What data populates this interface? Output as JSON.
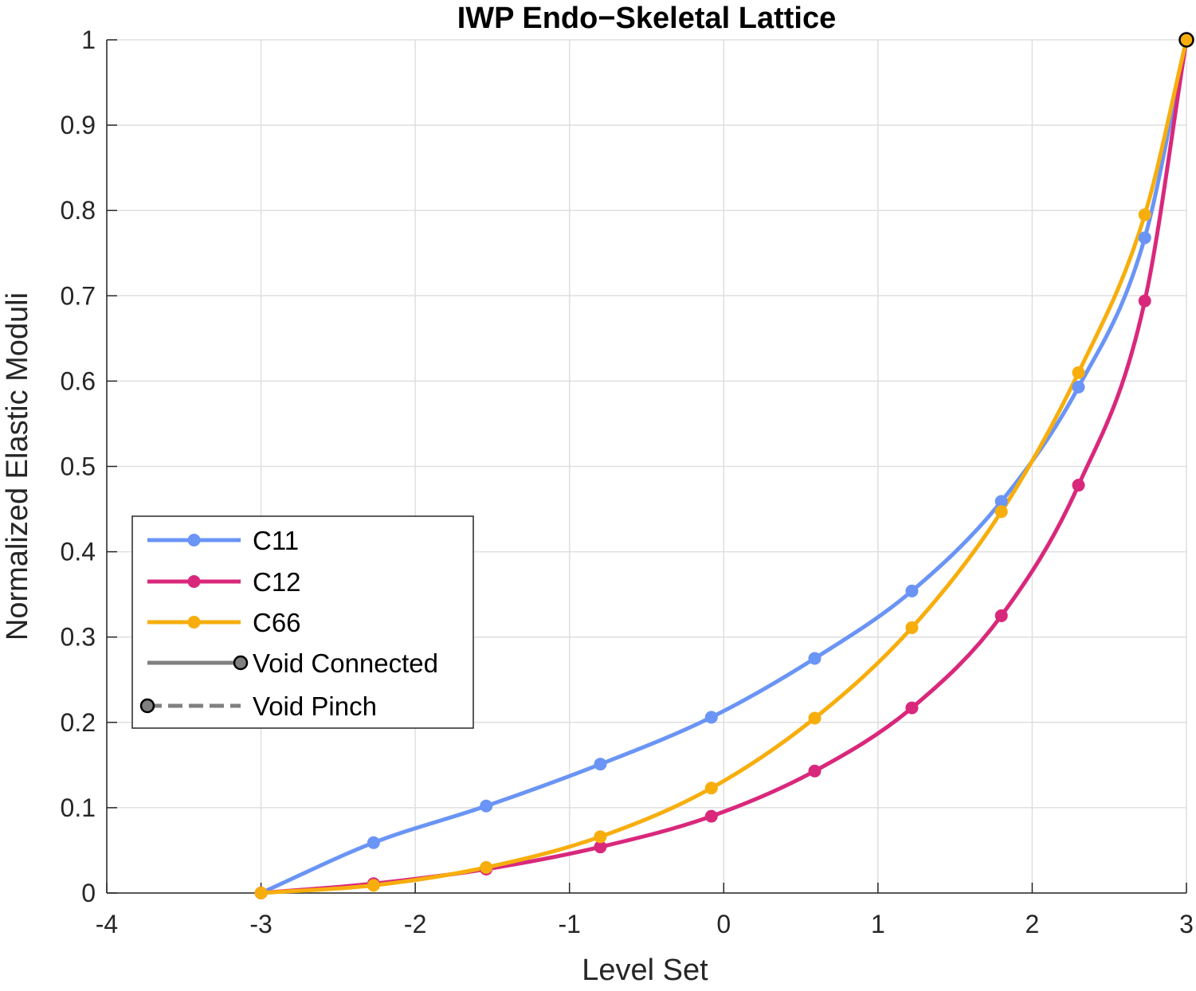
{
  "chart_data": {
    "type": "line",
    "title": "IWP Endo−Skeletal Lattice",
    "xlabel": "Level Set",
    "ylabel": "Normalized Elastic Moduli",
    "xlim": [
      -4,
      3
    ],
    "ylim": [
      0,
      1
    ],
    "xticks": [
      -4,
      -3,
      -2,
      -1,
      0,
      1,
      2,
      3
    ],
    "xtick_labels": [
      "-4",
      "-3",
      "-2",
      "-1",
      "0",
      "1",
      "2",
      "3"
    ],
    "yticks": [
      0,
      0.1,
      0.2,
      0.3,
      0.4,
      0.5,
      0.6,
      0.7,
      0.8,
      0.9,
      1
    ],
    "ytick_labels": [
      "0",
      "0.1",
      "0.2",
      "0.3",
      "0.4",
      "0.5",
      "0.6",
      "0.7",
      "0.8",
      "0.9",
      "1"
    ],
    "grid": true,
    "legend_position": "left-middle",
    "series": [
      {
        "name": "C11",
        "color": "#6a94f5",
        "style": "solid",
        "x": [
          -3.0,
          -2.27,
          -1.54,
          -0.8,
          -0.08,
          0.59,
          1.22,
          1.8,
          2.3,
          2.73,
          3.0
        ],
        "y": [
          0.0,
          0.059,
          0.102,
          0.151,
          0.206,
          0.275,
          0.354,
          0.459,
          0.593,
          0.768,
          1.0
        ]
      },
      {
        "name": "C12",
        "color": "#d9287c",
        "style": "solid",
        "x": [
          -3.0,
          -2.27,
          -1.54,
          -0.8,
          -0.08,
          0.59,
          1.22,
          1.8,
          2.3,
          2.73,
          3.0
        ],
        "y": [
          0.0,
          0.011,
          0.028,
          0.054,
          0.09,
          0.143,
          0.217,
          0.325,
          0.478,
          0.694,
          1.0
        ]
      },
      {
        "name": "C66",
        "color": "#f7ae0d",
        "style": "solid",
        "x": [
          -3.0,
          -2.27,
          -1.54,
          -0.8,
          -0.08,
          0.59,
          1.22,
          1.8,
          2.3,
          2.73,
          3.0
        ],
        "y": [
          0.0,
          0.009,
          0.03,
          0.066,
          0.123,
          0.205,
          0.311,
          0.447,
          0.61,
          0.795,
          1.0
        ]
      }
    ],
    "legend": [
      {
        "label": "C11",
        "color": "#6a94f5",
        "style": "solid",
        "marker": "filled"
      },
      {
        "label": "C12",
        "color": "#d9287c",
        "style": "solid",
        "marker": "filled"
      },
      {
        "label": "C66",
        "color": "#f7ae0d",
        "style": "solid",
        "marker": "filled"
      },
      {
        "label": "Void Connected",
        "color": "#808080",
        "style": "solid",
        "marker": "outlined-end"
      },
      {
        "label": "Void Pinch",
        "color": "#808080",
        "style": "dashed",
        "marker": "outlined-start"
      }
    ],
    "annotations": [
      {
        "type": "end-marker",
        "x": 3.0,
        "y": 1.0,
        "color": "#f7ae0d",
        "outline": "#000000"
      }
    ]
  }
}
